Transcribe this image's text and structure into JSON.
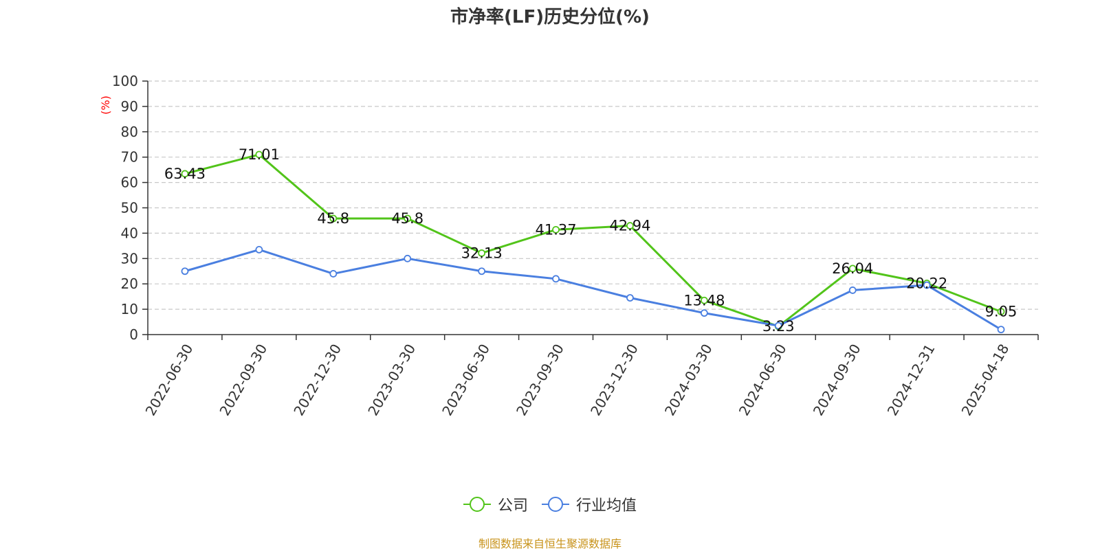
{
  "colors": {
    "company": "#52c41a",
    "industry": "#4a7fe0",
    "source": "#c8931b",
    "unit": "#ff0000"
  },
  "chart_data": {
    "type": "line",
    "title": "市净率(LF)历史分位(%)",
    "ylabel": "(%)",
    "ylim": [
      0,
      100
    ],
    "yticks": [
      0,
      10,
      20,
      30,
      40,
      50,
      60,
      70,
      80,
      90,
      100
    ],
    "grid": true,
    "legend_position": "bottom",
    "categories": [
      "2022-06-30",
      "2022-09-30",
      "2022-12-30",
      "2023-03-30",
      "2023-06-30",
      "2023-09-30",
      "2023-12-30",
      "2024-03-30",
      "2024-06-30",
      "2024-09-30",
      "2024-12-31",
      "2025-04-18"
    ],
    "series": [
      {
        "name": "公司",
        "color": "#52c41a",
        "show_labels": true,
        "values": [
          63.43,
          71.01,
          45.8,
          45.8,
          32.13,
          41.37,
          42.94,
          13.48,
          3.23,
          26.04,
          20.22,
          9.05
        ]
      },
      {
        "name": "行业均值",
        "color": "#4a7fe0",
        "show_labels": false,
        "values": [
          25,
          33.5,
          24,
          30,
          25,
          22,
          14.5,
          8.5,
          3.5,
          17.5,
          19.5,
          2
        ]
      }
    ],
    "source_note": "制图数据来自恒生聚源数据库"
  }
}
